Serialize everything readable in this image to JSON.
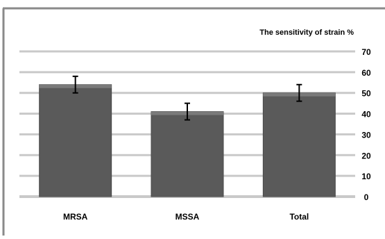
{
  "chart_data": {
    "type": "bar",
    "title": "",
    "xlabel": "",
    "ylabel": "The sensitivity of strain %",
    "categories": [
      "MRSA",
      "MSSA",
      "Total"
    ],
    "series": [
      {
        "values": [
          54,
          41,
          50
        ],
        "error": [
          4,
          4,
          4
        ]
      }
    ],
    "ylim": [
      0,
      70
    ],
    "yticks": [
      0,
      10,
      20,
      30,
      40,
      50,
      60,
      70
    ],
    "y_axis_side": "right",
    "grid": true,
    "legend": "none",
    "colors": {
      "bar": "#5a5a5a",
      "bar_top": "#7a7a7a",
      "grid": "#c9c9c9",
      "frame": "#8a8a8a",
      "text": "#000000"
    }
  }
}
